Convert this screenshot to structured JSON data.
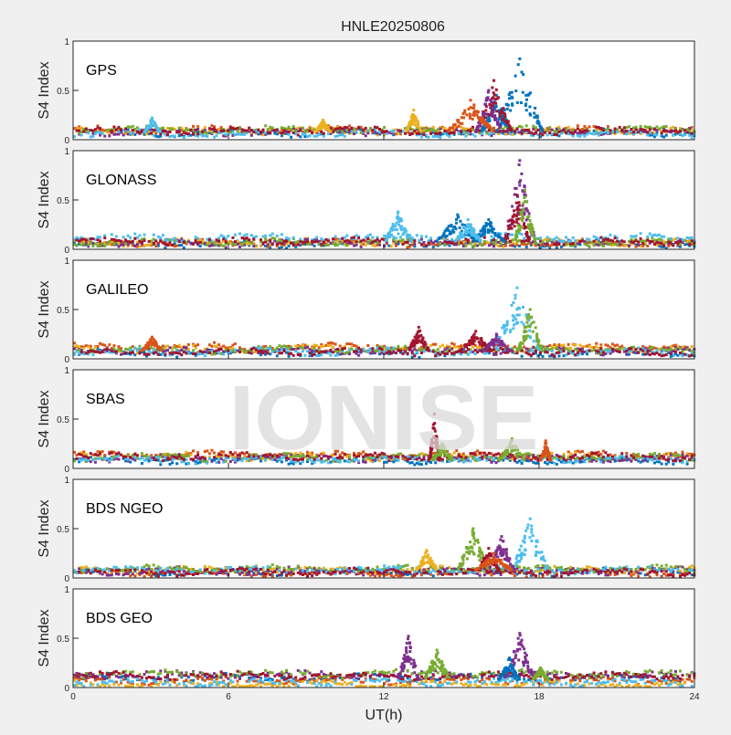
{
  "chart_data": {
    "type": "scatter",
    "title": "HNLE20250806",
    "xlabel": "UT(h)",
    "ylabel": "S4 Index",
    "xlim": [
      0,
      24
    ],
    "ylim": [
      0,
      1
    ],
    "xticks": [
      "0",
      "6",
      "12",
      "18",
      "24"
    ],
    "yticks": [
      "0",
      "0.5",
      "1"
    ],
    "watermark": "IONISE",
    "colors": [
      "#0072BD",
      "#D95319",
      "#EDB120",
      "#7E2F8E",
      "#77AC30",
      "#4DBEEE",
      "#A2142F"
    ],
    "panels": [
      {
        "label": "GPS",
        "baseline": [
          0.07,
          0.1,
          0.09,
          0.08,
          0.1,
          0.06,
          0.09
        ],
        "events": [
          {
            "c": 0,
            "t": 17.2,
            "w": 0.9,
            "peak": 0.82
          },
          {
            "c": 0,
            "t": 16.3,
            "w": 0.6,
            "peak": 0.45
          },
          {
            "c": 6,
            "t": 16.2,
            "w": 0.7,
            "peak": 0.6
          },
          {
            "c": 3,
            "t": 16.0,
            "w": 0.5,
            "peak": 0.5
          },
          {
            "c": 1,
            "t": 15.3,
            "w": 0.9,
            "peak": 0.4
          },
          {
            "c": 5,
            "t": 3.0,
            "w": 0.3,
            "peak": 0.22
          },
          {
            "c": 2,
            "t": 13.1,
            "w": 0.3,
            "peak": 0.3
          },
          {
            "c": 2,
            "t": 9.6,
            "w": 0.3,
            "peak": 0.2
          }
        ]
      },
      {
        "label": "GLONASS",
        "baseline": [
          0.05,
          0.06,
          0.07,
          0.06,
          0.07,
          0.12,
          0.08
        ],
        "events": [
          {
            "c": 3,
            "t": 17.2,
            "w": 0.6,
            "peak": 0.9
          },
          {
            "c": 6,
            "t": 17.1,
            "w": 0.5,
            "peak": 0.55
          },
          {
            "c": 4,
            "t": 17.4,
            "w": 0.4,
            "peak": 0.6
          },
          {
            "c": 5,
            "t": 12.5,
            "w": 0.5,
            "peak": 0.38
          },
          {
            "c": 0,
            "t": 14.8,
            "w": 0.8,
            "peak": 0.35
          },
          {
            "c": 0,
            "t": 16.0,
            "w": 0.6,
            "peak": 0.3
          },
          {
            "c": 5,
            "t": 15.2,
            "w": 0.5,
            "peak": 0.3
          }
        ]
      },
      {
        "label": "GALILEO",
        "baseline": [
          0.06,
          0.12,
          0.1,
          0.08,
          0.09,
          0.07,
          0.07
        ],
        "events": [
          {
            "c": 5,
            "t": 17.1,
            "w": 0.9,
            "peak": 0.72
          },
          {
            "c": 4,
            "t": 17.6,
            "w": 0.5,
            "peak": 0.5
          },
          {
            "c": 6,
            "t": 13.3,
            "w": 0.4,
            "peak": 0.32
          },
          {
            "c": 6,
            "t": 15.5,
            "w": 0.6,
            "peak": 0.28
          },
          {
            "c": 3,
            "t": 16.3,
            "w": 0.5,
            "peak": 0.25
          },
          {
            "c": 1,
            "t": 3.0,
            "w": 0.4,
            "peak": 0.22
          }
        ]
      },
      {
        "label": "SBAS",
        "baseline": [
          0.08,
          0.14,
          0.12,
          0.1,
          0.11,
          0.09,
          0.12
        ],
        "events": [
          {
            "c": 6,
            "t": 13.9,
            "w": 0.2,
            "peak": 0.55
          },
          {
            "c": 4,
            "t": 14.2,
            "w": 0.4,
            "peak": 0.25
          },
          {
            "c": 4,
            "t": 16.9,
            "w": 0.5,
            "peak": 0.3
          },
          {
            "c": 1,
            "t": 18.2,
            "w": 0.2,
            "peak": 0.28
          }
        ]
      },
      {
        "label": "BDS NGEO",
        "baseline": [
          0.06,
          0.05,
          0.08,
          0.07,
          0.09,
          0.08,
          0.06
        ],
        "events": [
          {
            "c": 5,
            "t": 17.6,
            "w": 0.7,
            "peak": 0.6
          },
          {
            "c": 4,
            "t": 15.4,
            "w": 0.6,
            "peak": 0.5
          },
          {
            "c": 3,
            "t": 16.5,
            "w": 0.5,
            "peak": 0.42
          },
          {
            "c": 2,
            "t": 13.6,
            "w": 0.4,
            "peak": 0.28
          },
          {
            "c": 6,
            "t": 16.0,
            "w": 0.4,
            "peak": 0.3
          },
          {
            "c": 1,
            "t": 16.2,
            "w": 0.7,
            "peak": 0.25
          }
        ]
      },
      {
        "label": "BDS GEO",
        "baseline": [
          0.1,
          0.07,
          0.03,
          0.13,
          0.14,
          0.05,
          0.12
        ],
        "events": [
          {
            "c": 3,
            "t": 12.9,
            "w": 0.4,
            "peak": 0.52
          },
          {
            "c": 4,
            "t": 14.0,
            "w": 0.5,
            "peak": 0.38
          },
          {
            "c": 3,
            "t": 17.2,
            "w": 0.6,
            "peak": 0.55
          },
          {
            "c": 0,
            "t": 16.8,
            "w": 0.4,
            "peak": 0.3
          },
          {
            "c": 4,
            "t": 18.0,
            "w": 0.3,
            "peak": 0.2
          }
        ]
      }
    ]
  }
}
